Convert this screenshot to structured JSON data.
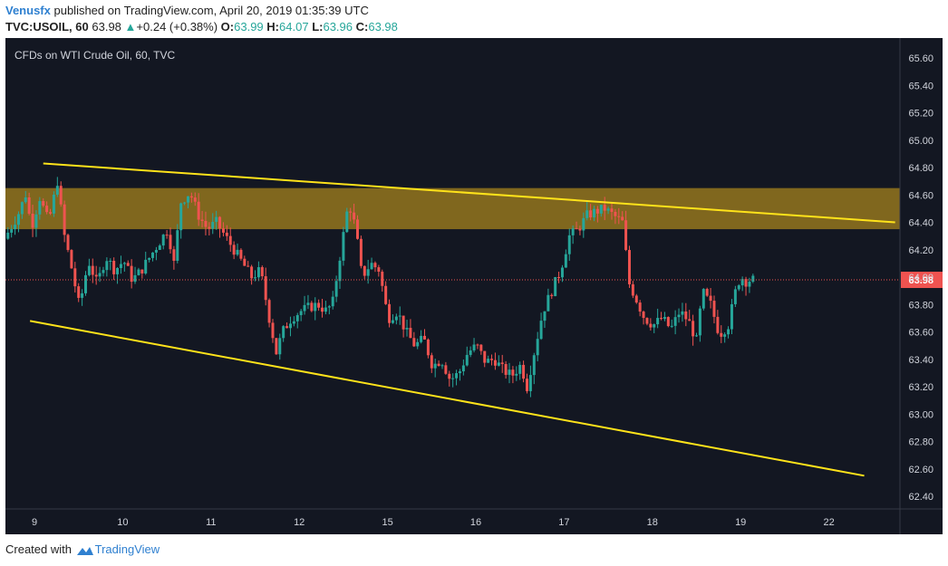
{
  "header": {
    "author": "Venusfx",
    "published_text": "published on TradingView.com, April 20, 2019 01:35:39 UTC",
    "symbol": "TVC:USOIL, 60",
    "last": "63.98",
    "change_arrow": "▲",
    "change": "+0.24 (+0.38%)",
    "o_label": "O:",
    "o_value": "63.99",
    "h_label": "H:",
    "h_value": "64.07",
    "l_label": "L:",
    "l_value": "63.96",
    "c_label": "C:",
    "c_value": "63.98"
  },
  "footer": {
    "created_with": "Created with",
    "brand": "TradingView",
    "logo_icon": "tradingview-cloud-icon"
  },
  "colors": {
    "background": "#131722",
    "up": "#26a69a",
    "down": "#ef5350",
    "zone": "#8a6f1e",
    "trendline": "#ffe31a",
    "price_line": "#ef5350"
  },
  "chart_data": {
    "type": "candlestick",
    "title": "CFDs on WTI Crude Oil, 60, TVC",
    "ylim": [
      62.32,
      65.72
    ],
    "y_ticks": [
      "65.60",
      "65.40",
      "65.20",
      "65.00",
      "64.80",
      "64.60",
      "64.40",
      "64.20",
      "64.00",
      "63.80",
      "63.60",
      "63.40",
      "63.20",
      "63.00",
      "62.80",
      "62.60",
      "62.40"
    ],
    "x_ticks": [
      "9",
      "10",
      "11",
      "12",
      "15",
      "16",
      "17",
      "18",
      "19",
      "22"
    ],
    "last_price": 63.98,
    "last_price_label": "63.98",
    "resistance_zone": [
      64.35,
      64.65
    ],
    "trendlines": [
      {
        "name": "upper",
        "from": {
          "x": 9.1,
          "y": 64.83
        },
        "to": {
          "x": 18.75,
          "y": 64.4
        }
      },
      {
        "name": "lower",
        "from": {
          "x": 8.95,
          "y": 63.68
        },
        "to": {
          "x": 18.4,
          "y": 62.55
        }
      }
    ],
    "price_path": [
      [
        8.7,
        64.28
      ],
      [
        8.85,
        64.45
      ],
      [
        8.95,
        64.62
      ],
      [
        9.0,
        64.35
      ],
      [
        9.1,
        64.58
      ],
      [
        9.2,
        64.4
      ],
      [
        9.3,
        64.7
      ],
      [
        9.38,
        64.3
      ],
      [
        9.45,
        64.1
      ],
      [
        9.55,
        63.78
      ],
      [
        9.65,
        64.12
      ],
      [
        9.75,
        63.95
      ],
      [
        9.85,
        64.15
      ],
      [
        9.95,
        64.05
      ],
      [
        10.05,
        64.12
      ],
      [
        10.15,
        63.98
      ],
      [
        10.25,
        64.05
      ],
      [
        10.35,
        64.15
      ],
      [
        10.45,
        64.25
      ],
      [
        10.55,
        64.35
      ],
      [
        10.62,
        64.1
      ],
      [
        10.7,
        64.55
      ],
      [
        10.8,
        64.62
      ],
      [
        10.9,
        64.45
      ],
      [
        11.0,
        64.35
      ],
      [
        11.1,
        64.4
      ],
      [
        11.2,
        64.3
      ],
      [
        11.3,
        64.2
      ],
      [
        11.4,
        64.1
      ],
      [
        11.5,
        64.0
      ],
      [
        11.6,
        64.05
      ],
      [
        11.7,
        63.7
      ],
      [
        11.78,
        63.45
      ],
      [
        11.85,
        63.6
      ],
      [
        11.95,
        63.7
      ],
      [
        12.05,
        63.75
      ],
      [
        12.15,
        63.78
      ],
      [
        12.25,
        63.8
      ],
      [
        12.35,
        63.75
      ],
      [
        12.42,
        63.82
      ],
      [
        12.5,
        64.15
      ],
      [
        12.6,
        64.55
      ],
      [
        12.68,
        64.35
      ],
      [
        12.75,
        64.0
      ],
      [
        12.85,
        64.1
      ],
      [
        12.95,
        64.05
      ],
      [
        13.0,
        63.85
      ],
      [
        13.05,
        63.7
      ],
      [
        13.15,
        63.75
      ],
      [
        13.25,
        63.6
      ],
      [
        13.35,
        63.5
      ],
      [
        13.45,
        63.55
      ],
      [
        13.55,
        63.35
      ],
      [
        13.65,
        63.4
      ],
      [
        13.75,
        63.25
      ],
      [
        13.85,
        63.3
      ],
      [
        13.95,
        63.45
      ],
      [
        14.05,
        63.5
      ],
      [
        14.15,
        63.38
      ],
      [
        14.25,
        63.4
      ],
      [
        14.35,
        63.32
      ],
      [
        14.45,
        63.28
      ],
      [
        14.55,
        63.36
      ],
      [
        14.62,
        63.2
      ],
      [
        14.7,
        63.45
      ],
      [
        14.8,
        63.75
      ],
      [
        14.9,
        63.9
      ],
      [
        15.0,
        64.05
      ],
      [
        15.1,
        64.3
      ],
      [
        15.2,
        64.35
      ],
      [
        15.3,
        64.45
      ],
      [
        15.4,
        64.48
      ],
      [
        15.5,
        64.5
      ],
      [
        15.6,
        64.45
      ],
      [
        15.7,
        64.4
      ],
      [
        15.78,
        63.95
      ],
      [
        15.85,
        63.85
      ],
      [
        15.95,
        63.7
      ],
      [
        16.05,
        63.65
      ],
      [
        16.15,
        63.7
      ],
      [
        16.25,
        63.62
      ],
      [
        16.35,
        63.75
      ],
      [
        16.45,
        63.68
      ],
      [
        16.55,
        63.52
      ],
      [
        16.6,
        63.9
      ],
      [
        16.7,
        63.8
      ],
      [
        16.8,
        63.58
      ],
      [
        16.9,
        63.65
      ],
      [
        17.0,
        63.95
      ],
      [
        17.05,
        64.0
      ],
      [
        17.1,
        63.97
      ],
      [
        17.15,
        63.98
      ]
    ]
  }
}
